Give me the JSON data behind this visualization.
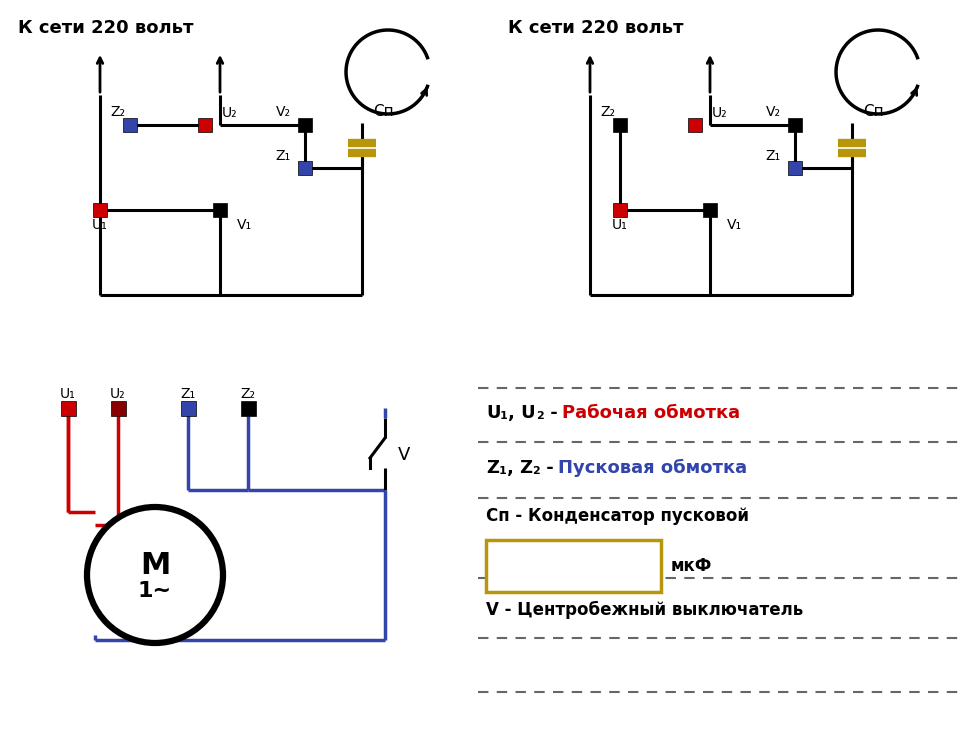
{
  "bg_color": "#ffffff",
  "red_color": "#cc0000",
  "blue_color": "#3344aa",
  "dark_red": "#880000",
  "dark_blue": "#221155",
  "black_color": "#000000",
  "gold_color": "#b8960c",
  "text_left_title": "К сети 220 вольт",
  "text_right_title": "К сети 220 вольт",
  "legend_u_label": "U₁, U₂ - ",
  "legend_u_text": "Рабочая обмотка",
  "legend_z_label": "Z₁, Z₂ - ",
  "legend_z_text": "Пусковая обмотка",
  "legend_cp": "Сп - Конденсатор пусковой",
  "legend_mkf": "мкФ",
  "legend_v": "V - Центробежный выключатель",
  "motor_m": "M",
  "motor_1": "1~"
}
